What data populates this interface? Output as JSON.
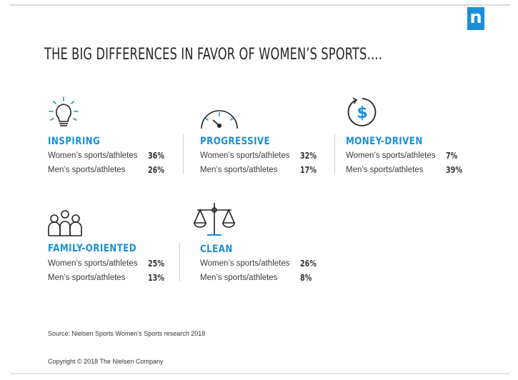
{
  "brand": {
    "logo_letter": "n",
    "logo_color": "#1a8fd8"
  },
  "headline": "THE BIG DIFFERENCES IN FAVOR OF WOMEN’S SPORTS….",
  "accent_color": "#1a8fd8",
  "row_labels": {
    "women": "Women’s sports/athletes",
    "men": "Men’s sports/athletes"
  },
  "attributes": [
    {
      "icon": "lightbulb-icon",
      "label": "INSPIRING",
      "women": "36%",
      "men": "26%"
    },
    {
      "icon": "gauge-icon",
      "label": "PROGRESSIVE",
      "women": "32%",
      "men": "17%"
    },
    {
      "icon": "dollar-cycle-icon",
      "label": "MONEY-DRIVEN",
      "women": "7%",
      "men": "39%"
    },
    {
      "icon": "family-icon",
      "label": "FAMILY-ORIENTED",
      "women": "25%",
      "men": "13%"
    },
    {
      "icon": "scales-icon",
      "label": "CLEAN",
      "women": "26%",
      "men": "8%"
    }
  ],
  "footer": {
    "source": "Source: Nielsen Sports Women’s Sports research 2018",
    "copyright": "Copyright © 2018 The Nielsen Company"
  }
}
